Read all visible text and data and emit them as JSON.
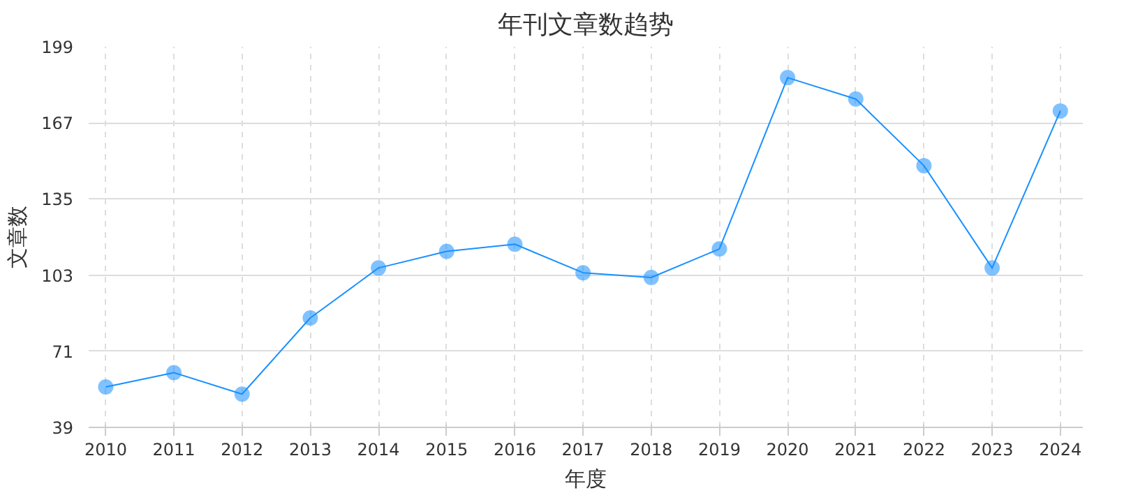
{
  "chart_data": {
    "type": "line",
    "title": "年刊文章数趋势",
    "xlabel": "年度",
    "ylabel": "文章数",
    "x": [
      2010,
      2011,
      2012,
      2013,
      2014,
      2015,
      2016,
      2017,
      2018,
      2019,
      2020,
      2021,
      2022,
      2023,
      2024
    ],
    "series": [
      {
        "color": "#1890ff",
        "values": [
          56,
          62,
          53,
          85,
          106,
          113,
          116,
          104,
          102,
          114,
          186,
          177,
          149,
          106,
          172
        ]
      }
    ],
    "xlim": [
      2009.75,
      2024.33
    ],
    "xticks": [
      2010,
      2011,
      2012,
      2013,
      2014,
      2015,
      2016,
      2017,
      2018,
      2019,
      2020,
      2021,
      2022,
      2023,
      2024
    ],
    "ylim": [
      39,
      199
    ],
    "yticks": [
      39,
      71,
      103,
      135,
      167,
      199
    ],
    "grid": true,
    "marker": "circle",
    "line_style": "solid"
  }
}
